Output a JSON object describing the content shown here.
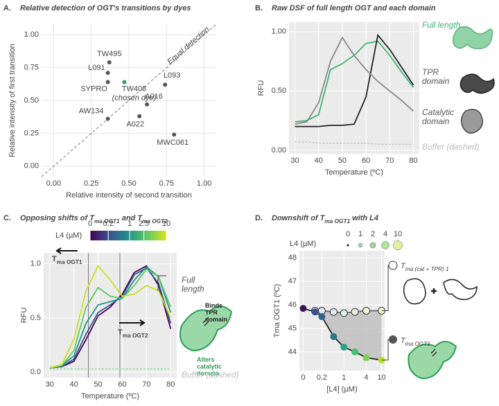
{
  "chart_data": [
    {
      "type": "scatter",
      "panel": "A.",
      "title": "Relative detection of OGT's transitions by dyes",
      "x_label": "Relative intensity of second transition",
      "y_label": "Relative intensity of first transition",
      "xlim": [
        -0.08,
        1.08
      ],
      "ylim": [
        -0.08,
        1.08
      ],
      "xticks": [
        {
          "value": 0,
          "label": "0.00"
        },
        {
          "value": 0.25,
          "label": "0.25"
        },
        {
          "value": 0.5,
          "label": "0.50"
        },
        {
          "value": 0.75,
          "label": "0.75"
        },
        {
          "value": 1,
          "label": "1.00"
        }
      ],
      "yticks": [
        {
          "value": 0,
          "label": "0.00"
        },
        {
          "value": 0.25,
          "label": "0.25"
        },
        {
          "value": 0.5,
          "label": "0.50"
        },
        {
          "value": 0.75,
          "label": "0.75"
        },
        {
          "value": 1,
          "label": "1.00"
        }
      ],
      "grid": true,
      "diagonal_label": "Equal detection",
      "point_labels": [
        "TW495",
        "L091",
        "SYPRO",
        "TW408",
        "L093",
        "A016",
        "AW134",
        "A022",
        "MWC061"
      ],
      "x": [
        0.37,
        0.36,
        0.36,
        0.47,
        0.74,
        0.62,
        0.36,
        0.57,
        0.8
      ],
      "values": [
        0.79,
        0.71,
        0.64,
        0.64,
        0.62,
        0.47,
        0.36,
        0.38,
        0.24
      ],
      "colors": [
        "#555555",
        "#555555",
        "#555555",
        "#2ca25f",
        "#555555",
        "#555555",
        "#555555",
        "#555555",
        "#555555"
      ],
      "point_notes": [
        null,
        null,
        null,
        "(chosen dye)",
        null,
        null,
        null,
        null,
        null
      ]
    },
    {
      "type": "line",
      "panel": "B.",
      "title": "Raw DSF of full length OGT and each domain",
      "x_label": "Temperature (ºC)",
      "y_label": "RFU",
      "xlim": [
        27.5,
        82.5
      ],
      "ylim": [
        -0.03,
        1.08
      ],
      "xticks": [
        30,
        40,
        50,
        60,
        70,
        80
      ],
      "yticks": [
        {
          "value": 0,
          "label": "0.00"
        },
        {
          "value": 0.5,
          "label": "0.50"
        },
        {
          "value": 1,
          "label": "1.00"
        }
      ],
      "grid": true,
      "x": [
        30,
        35,
        40,
        45,
        50,
        55,
        60,
        65,
        70,
        75,
        80
      ],
      "series": [
        {
          "name": "Full length",
          "color": "#3cb371",
          "values": [
            0.24,
            0.25,
            0.3,
            0.68,
            0.73,
            0.8,
            0.9,
            0.92,
            0.8,
            0.66,
            0.53
          ]
        },
        {
          "name": "TPR domain",
          "color": "#222222",
          "values": [
            0.2,
            0.2,
            0.2,
            0.21,
            0.21,
            0.22,
            0.45,
            0.97,
            0.85,
            0.7,
            0.55
          ]
        },
        {
          "name": "Catalytic domain",
          "color": "#888888",
          "values": [
            0.22,
            0.24,
            0.4,
            0.75,
            0.95,
            0.8,
            0.68,
            0.58,
            0.5,
            0.42,
            0.33
          ]
        },
        {
          "name": "Buffer (dashed)",
          "color": "#bbbbbb",
          "dashed": true,
          "values": [
            0.07,
            0.07,
            0.06,
            0.06,
            0.06,
            0.06,
            0.06,
            0.05,
            0.05,
            0.05,
            0.05
          ]
        }
      ]
    },
    {
      "type": "line",
      "panel": "C.",
      "title_parts": [
        "Opposing shifts of ",
        {
          "symbol": "T",
          "subscript": "ma OGT1"
        },
        " and ",
        {
          "symbol": "T",
          "subscript": "ma OGT2"
        }
      ],
      "x_label": "Temperature (ºC)",
      "y_label": "RFU",
      "xlim": [
        27.5,
        82.5
      ],
      "ylim": [
        -0.05,
        1.1
      ],
      "xticks": [
        30,
        40,
        50,
        60,
        70,
        80
      ],
      "yticks": [
        {
          "value": 0,
          "label": "0.0"
        },
        {
          "value": 0.5,
          "label": "0.5"
        },
        {
          "value": 1,
          "label": "1.0"
        }
      ],
      "grid": true,
      "x": [
        30,
        35,
        40,
        45,
        50,
        55,
        60,
        65,
        70,
        75,
        80
      ],
      "colorbar": {
        "label": "L4 (µM)",
        "lim": [
          0,
          10
        ],
        "ticks": [
          0,
          0.2,
          1,
          2.5,
          10
        ]
      },
      "vlines": [
        46,
        59
      ],
      "shift_labels": [
        {
          "symbol": "T",
          "subscript": "ma OGT1"
        },
        {
          "symbol": "T",
          "subscript": "ma OGT2"
        }
      ],
      "callout": "Full length",
      "binding_note": "Binds TPR domain",
      "effect_note": "Alters catalytic domain",
      "series": [
        {
          "color": "#440154",
          "values": [
            0.04,
            0.05,
            0.1,
            0.3,
            0.52,
            0.6,
            0.72,
            0.92,
            0.98,
            0.8,
            0.4
          ]
        },
        {
          "color": "#3b528b",
          "values": [
            0.04,
            0.05,
            0.12,
            0.35,
            0.55,
            0.62,
            0.7,
            0.9,
            0.96,
            0.82,
            0.45
          ]
        },
        {
          "color": "#21918c",
          "values": [
            0.04,
            0.06,
            0.15,
            0.45,
            0.62,
            0.65,
            0.68,
            0.85,
            0.97,
            0.88,
            0.55
          ]
        },
        {
          "color": "#5ec962",
          "values": [
            0.04,
            0.06,
            0.2,
            0.6,
            0.78,
            0.7,
            0.68,
            0.8,
            0.95,
            0.88,
            0.6
          ]
        },
        {
          "color": "#c8e020",
          "values": [
            0.04,
            0.07,
            0.3,
            0.75,
            0.98,
            0.85,
            0.7,
            0.72,
            0.8,
            0.75,
            0.5
          ]
        },
        {
          "name": "Buffer (dashed)",
          "color": "#7fcf8f",
          "dashed": true,
          "values": [
            0.03,
            0.03,
            0.03,
            0.03,
            0.03,
            0.03,
            0.03,
            0.03,
            0.03,
            0.03,
            0.03
          ]
        }
      ]
    },
    {
      "type": "scatter",
      "panel": "D.",
      "title_parts": [
        "Downshift of ",
        {
          "symbol": "T",
          "subscript": "ma OGT1"
        },
        " with L4"
      ],
      "x_label": "[L4] (µM)",
      "y_label": "Tma OGT1 (ºC)",
      "xscale": "pseudo-log",
      "xlim": [
        -0.02,
        12
      ],
      "ylim": [
        43.2,
        48.3
      ],
      "xticks": [
        0,
        0.2,
        1,
        4,
        10
      ],
      "yticks": [
        44,
        45,
        46,
        47,
        48
      ],
      "grid": true,
      "x": [
        0,
        0.1,
        0.2,
        0.5,
        1,
        2,
        4,
        10
      ],
      "size_legend": {
        "label": "L4 (µM)",
        "ticks": [
          0,
          1,
          2,
          4,
          10
        ],
        "colors": [
          "#3d1255",
          "#9fd5c5",
          "#9fd5a5",
          "#b5e39c",
          "#e0f0a0"
        ]
      },
      "series": [
        {
          "name": {
            "symbol": "T",
            "subscript": "ma (cat + TPR) 1"
          },
          "open": true,
          "colors": [
            "#ffffff",
            "#e8e4f0",
            "#e0e8f2",
            "#ddedef",
            "#dcf2e8",
            "#e2f5dc",
            "#eff8d6",
            "#f6fbd0"
          ],
          "values": [
            null,
            45.75,
            45.75,
            45.7,
            45.65,
            45.7,
            45.75,
            45.75
          ]
        },
        {
          "name": {
            "symbol": "T",
            "subscript": "ma OGT1"
          },
          "colors": [
            "#3d1255",
            "#3b4f8a",
            "#35608d",
            "#2a788e",
            "#22a884",
            "#43bf71",
            "#7ad151",
            "#bddf26"
          ],
          "values": [
            45.85,
            45.7,
            45.5,
            44.65,
            44.2,
            44.0,
            43.75,
            43.65
          ]
        }
      ]
    }
  ]
}
